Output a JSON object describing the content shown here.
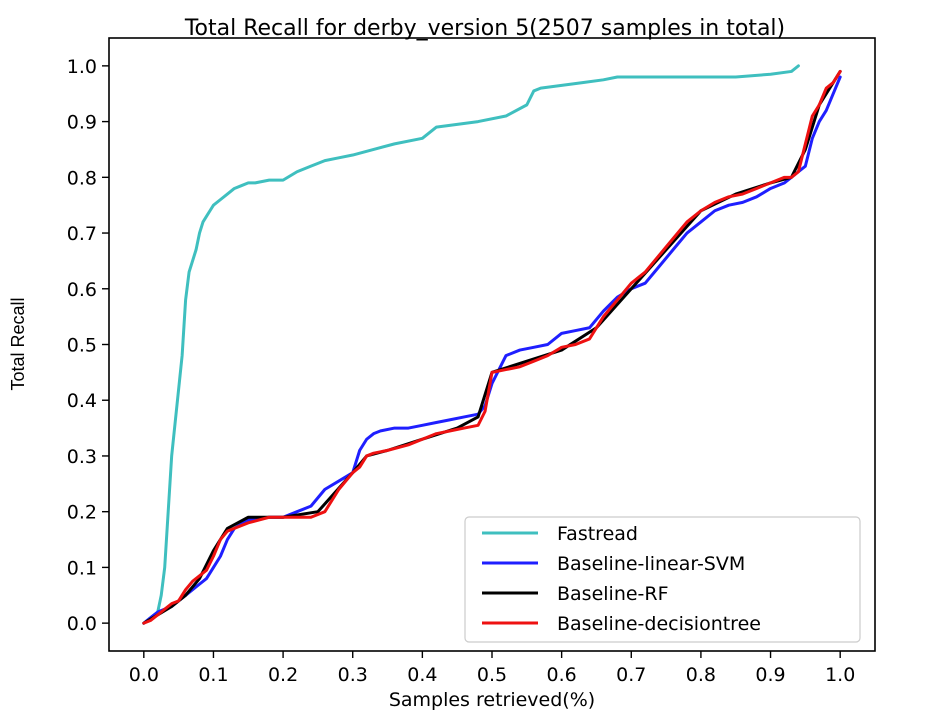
{
  "chart_data": {
    "type": "line",
    "title": "Total Recall for derby_version 5(2507 samples in total)",
    "xlabel": "Samples retrieved(%)",
    "ylabel": "Total Recall",
    "xlim": [
      -0.05,
      1.05
    ],
    "ylim": [
      -0.05,
      1.05
    ],
    "xticks": [
      "0.0",
      "0.1",
      "0.2",
      "0.3",
      "0.4",
      "0.5",
      "0.6",
      "0.7",
      "0.8",
      "0.9",
      "1.0"
    ],
    "yticks": [
      "0.0",
      "0.1",
      "0.2",
      "0.3",
      "0.4",
      "0.5",
      "0.6",
      "0.7",
      "0.8",
      "0.9",
      "1.0"
    ],
    "grid": false,
    "legend_position": "lower-right",
    "series": [
      {
        "name": "Fastread",
        "color": "#3fbfbf",
        "x": [
          0.0,
          0.01,
          0.02,
          0.025,
          0.03,
          0.035,
          0.04,
          0.045,
          0.05,
          0.055,
          0.06,
          0.065,
          0.07,
          0.075,
          0.08,
          0.085,
          0.09,
          0.095,
          0.1,
          0.11,
          0.12,
          0.13,
          0.14,
          0.15,
          0.16,
          0.18,
          0.2,
          0.22,
          0.24,
          0.26,
          0.28,
          0.3,
          0.33,
          0.36,
          0.4,
          0.42,
          0.45,
          0.48,
          0.52,
          0.55,
          0.56,
          0.57,
          0.6,
          0.63,
          0.66,
          0.68,
          0.7,
          0.75,
          0.8,
          0.85,
          0.9,
          0.93,
          0.94
        ],
        "y": [
          0.0,
          0.01,
          0.02,
          0.05,
          0.1,
          0.2,
          0.3,
          0.36,
          0.42,
          0.48,
          0.58,
          0.63,
          0.65,
          0.67,
          0.7,
          0.72,
          0.73,
          0.74,
          0.75,
          0.76,
          0.77,
          0.78,
          0.785,
          0.79,
          0.79,
          0.795,
          0.795,
          0.81,
          0.82,
          0.83,
          0.835,
          0.84,
          0.85,
          0.86,
          0.87,
          0.89,
          0.895,
          0.9,
          0.91,
          0.93,
          0.955,
          0.96,
          0.965,
          0.97,
          0.975,
          0.98,
          0.98,
          0.98,
          0.98,
          0.98,
          0.985,
          0.99,
          1.0
        ]
      },
      {
        "name": "Baseline-linear-SVM",
        "color": "#1f1fff",
        "x": [
          0.0,
          0.01,
          0.02,
          0.03,
          0.04,
          0.05,
          0.06,
          0.07,
          0.08,
          0.09,
          0.1,
          0.11,
          0.12,
          0.13,
          0.15,
          0.18,
          0.2,
          0.22,
          0.24,
          0.26,
          0.28,
          0.3,
          0.31,
          0.32,
          0.33,
          0.34,
          0.36,
          0.38,
          0.4,
          0.42,
          0.44,
          0.46,
          0.48,
          0.49,
          0.5,
          0.52,
          0.54,
          0.56,
          0.58,
          0.6,
          0.62,
          0.64,
          0.66,
          0.68,
          0.7,
          0.72,
          0.74,
          0.76,
          0.78,
          0.8,
          0.82,
          0.84,
          0.86,
          0.88,
          0.9,
          0.92,
          0.93,
          0.94,
          0.95,
          0.96,
          0.97,
          0.98,
          0.99,
          1.0
        ],
        "y": [
          0.0,
          0.01,
          0.02,
          0.025,
          0.03,
          0.04,
          0.05,
          0.06,
          0.07,
          0.08,
          0.1,
          0.12,
          0.15,
          0.17,
          0.185,
          0.19,
          0.19,
          0.2,
          0.21,
          0.24,
          0.255,
          0.27,
          0.31,
          0.33,
          0.34,
          0.345,
          0.35,
          0.35,
          0.355,
          0.36,
          0.365,
          0.37,
          0.375,
          0.39,
          0.43,
          0.48,
          0.49,
          0.495,
          0.5,
          0.52,
          0.525,
          0.53,
          0.56,
          0.585,
          0.6,
          0.61,
          0.64,
          0.67,
          0.7,
          0.72,
          0.74,
          0.75,
          0.755,
          0.765,
          0.78,
          0.79,
          0.8,
          0.81,
          0.82,
          0.87,
          0.9,
          0.92,
          0.95,
          0.98
        ]
      },
      {
        "name": "Baseline-RF",
        "color": "#000000",
        "x": [
          0.0,
          0.02,
          0.04,
          0.06,
          0.08,
          0.1,
          0.12,
          0.15,
          0.2,
          0.25,
          0.3,
          0.32,
          0.35,
          0.4,
          0.45,
          0.48,
          0.5,
          0.55,
          0.6,
          0.65,
          0.7,
          0.75,
          0.8,
          0.85,
          0.9,
          0.93,
          0.95,
          0.97,
          0.99,
          1.0
        ],
        "y": [
          0.0,
          0.015,
          0.03,
          0.05,
          0.08,
          0.13,
          0.17,
          0.19,
          0.19,
          0.2,
          0.27,
          0.3,
          0.31,
          0.33,
          0.35,
          0.37,
          0.45,
          0.47,
          0.49,
          0.53,
          0.6,
          0.67,
          0.74,
          0.77,
          0.79,
          0.8,
          0.85,
          0.93,
          0.97,
          0.99
        ]
      },
      {
        "name": "Baseline-decisiontree",
        "color": "#ee1111",
        "x": [
          0.0,
          0.01,
          0.02,
          0.03,
          0.04,
          0.05,
          0.06,
          0.07,
          0.08,
          0.09,
          0.1,
          0.11,
          0.12,
          0.13,
          0.15,
          0.18,
          0.2,
          0.22,
          0.24,
          0.26,
          0.28,
          0.3,
          0.31,
          0.32,
          0.33,
          0.35,
          0.38,
          0.4,
          0.42,
          0.44,
          0.46,
          0.48,
          0.49,
          0.5,
          0.52,
          0.54,
          0.56,
          0.58,
          0.6,
          0.62,
          0.64,
          0.66,
          0.68,
          0.7,
          0.72,
          0.74,
          0.76,
          0.78,
          0.8,
          0.82,
          0.84,
          0.86,
          0.88,
          0.9,
          0.92,
          0.93,
          0.94,
          0.95,
          0.96,
          0.97,
          0.98,
          0.99,
          1.0
        ],
        "y": [
          0.0,
          0.005,
          0.015,
          0.025,
          0.035,
          0.04,
          0.06,
          0.075,
          0.085,
          0.095,
          0.12,
          0.15,
          0.165,
          0.17,
          0.18,
          0.19,
          0.19,
          0.19,
          0.19,
          0.2,
          0.24,
          0.27,
          0.28,
          0.3,
          0.305,
          0.31,
          0.32,
          0.33,
          0.34,
          0.345,
          0.35,
          0.355,
          0.38,
          0.45,
          0.455,
          0.46,
          0.47,
          0.48,
          0.495,
          0.5,
          0.51,
          0.55,
          0.58,
          0.61,
          0.63,
          0.66,
          0.69,
          0.72,
          0.74,
          0.755,
          0.765,
          0.77,
          0.78,
          0.79,
          0.8,
          0.8,
          0.81,
          0.86,
          0.91,
          0.93,
          0.96,
          0.97,
          0.99
        ]
      }
    ]
  }
}
